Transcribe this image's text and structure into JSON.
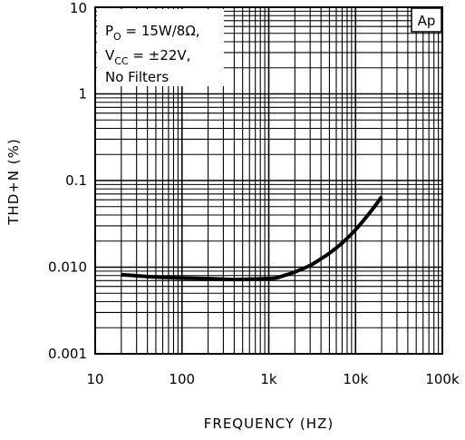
{
  "chart_data": {
    "type": "line",
    "title": "",
    "xlabel": "FREQUENCY (HZ)",
    "ylabel": "THD+N (%)",
    "x_scale": "log",
    "y_scale": "log",
    "xlim": [
      10,
      100000
    ],
    "ylim": [
      0.001,
      10
    ],
    "x_ticks": [
      {
        "value": 10,
        "label": "10"
      },
      {
        "value": 100,
        "label": "100"
      },
      {
        "value": 1000,
        "label": "1k"
      },
      {
        "value": 10000,
        "label": "10k"
      },
      {
        "value": 100000,
        "label": "100k"
      }
    ],
    "y_ticks": [
      {
        "value": 10,
        "label": "10"
      },
      {
        "value": 1,
        "label": "1"
      },
      {
        "value": 0.1,
        "label": "0.1"
      },
      {
        "value": 0.01,
        "label": "0.010"
      },
      {
        "value": 0.001,
        "label": "0.001"
      }
    ],
    "grid": true,
    "series": [
      {
        "x": [
          20,
          50,
          100,
          200,
          400,
          700,
          1000,
          1200,
          1500,
          2000,
          3000,
          4000,
          5000,
          7000,
          10000,
          15000,
          20000
        ],
        "y": [
          0.0082,
          0.0077,
          0.0075,
          0.0074,
          0.0072,
          0.0073,
          0.0074,
          0.0075,
          0.008,
          0.0088,
          0.0105,
          0.0125,
          0.0145,
          0.019,
          0.027,
          0.044,
          0.065
        ]
      }
    ],
    "annotation": {
      "lines": [
        {
          "prefix": "P",
          "sub": "O",
          "rest": " = 15W/8Ω,"
        },
        {
          "prefix": "V",
          "sub": "CC",
          "rest": " = ±22V,"
        },
        {
          "prefix": "No Filters",
          "sub": "",
          "rest": ""
        }
      ],
      "badge": "Ap"
    }
  }
}
